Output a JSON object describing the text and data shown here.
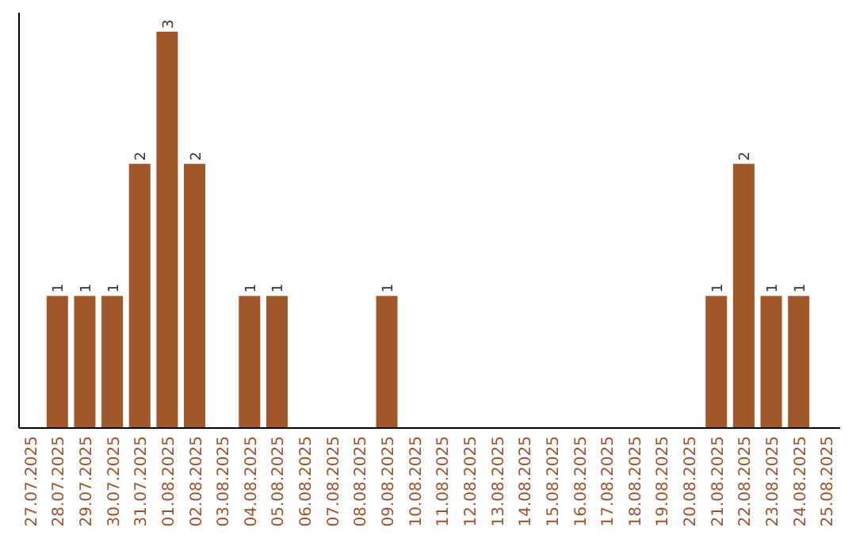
{
  "chart_data": {
    "type": "bar",
    "categories": [
      "27.07.2025",
      "28.07.2025",
      "29.07.2025",
      "30.07.2025",
      "31.07.2025",
      "01.08.2025",
      "02.08.2025",
      "03.08.2025",
      "04.08.2025",
      "05.08.2025",
      "06.08.2025",
      "07.08.2025",
      "08.08.2025",
      "09.08.2025",
      "10.08.2025",
      "11.08.2025",
      "12.08.2025",
      "13.08.2025",
      "14.08.2025",
      "15.08.2025",
      "16.08.2025",
      "17.08.2025",
      "18.08.2025",
      "19.08.2025",
      "20.08.2025",
      "21.08.2025",
      "22.08.2025",
      "23.08.2025",
      "24.08.2025",
      "25.08.2025"
    ],
    "values": [
      0,
      1,
      1,
      1,
      2,
      3,
      2,
      0,
      1,
      1,
      0,
      0,
      0,
      1,
      0,
      0,
      0,
      0,
      0,
      0,
      0,
      0,
      0,
      0,
      0,
      1,
      2,
      1,
      1,
      0
    ],
    "value_labels": [
      null,
      "1",
      "1",
      "1",
      "2",
      "3",
      "2",
      null,
      "1",
      "1",
      null,
      null,
      null,
      "1",
      null,
      null,
      null,
      null,
      null,
      null,
      null,
      null,
      null,
      null,
      null,
      "1",
      "2",
      "1",
      "1",
      null
    ],
    "color": "#a0582a",
    "tick_labels": "x"
  }
}
